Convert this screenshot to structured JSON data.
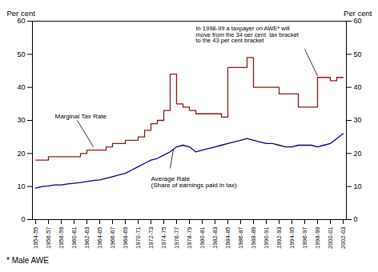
{
  "chart_data": {
    "type": "line",
    "ylabel": "Per cent",
    "y2label": "Per cent",
    "footnote": "* Male AWE",
    "annotations": [
      "In 1998-99 a taxpayer on AWE* will\nmove from the 34 per cent  tax bracket\nto the 43 per cent bracket"
    ],
    "x": [
      1954.5,
      1955.5,
      1956.5,
      1957.5,
      1958.5,
      1959.5,
      1960.5,
      1961.5,
      1962.5,
      1963.5,
      1964.5,
      1965.5,
      1966.5,
      1967.5,
      1968.5,
      1969.5,
      1970.5,
      1971.5,
      1972.5,
      1973.5,
      1974.5,
      1975.5,
      1976.5,
      1977.5,
      1978.5,
      1979.5,
      1980.5,
      1981.5,
      1982.5,
      1983.5,
      1984.5,
      1985.5,
      1986.5,
      1987.5,
      1988.5,
      1989.5,
      1990.5,
      1991.5,
      1992.5,
      1993.5,
      1994.5,
      1995.5,
      1996.5,
      1997.5,
      1998.5,
      1999.5,
      2000.5,
      2001.5,
      2002.5
    ],
    "series": [
      {
        "name": "Marginal Tax Rate",
        "type": "step",
        "color": "#8B1A1A",
        "values": [
          18,
          18,
          19,
          19,
          19,
          19,
          19,
          20,
          21,
          21,
          21,
          22,
          23,
          23,
          24,
          24,
          25,
          27,
          29,
          30,
          33,
          44,
          35,
          34,
          33,
          32,
          32,
          32,
          32,
          31,
          46,
          46,
          46,
          49,
          40,
          40,
          40,
          40,
          38,
          38,
          38,
          34,
          34,
          34,
          43,
          43,
          42,
          43,
          43
        ]
      },
      {
        "name": "Average Rate\n(Share of earnings paid in tax)",
        "type": "line",
        "color": "#00008B",
        "values": [
          9.5,
          10.0,
          10.2,
          10.5,
          10.5,
          10.8,
          11.0,
          11.2,
          11.5,
          11.8,
          12.0,
          12.5,
          13.0,
          13.5,
          14.0,
          15.0,
          16.0,
          17.0,
          18.0,
          18.5,
          19.5,
          20.5,
          22.0,
          22.5,
          22.0,
          20.5,
          21.0,
          21.5,
          22.0,
          22.5,
          23.0,
          23.5,
          24.0,
          24.5,
          24.0,
          23.5,
          23.0,
          23.0,
          22.5,
          22.0,
          22.0,
          22.5,
          22.5,
          22.5,
          22.0,
          22.5,
          23.0,
          24.5,
          26.0
        ]
      }
    ],
    "xlim": [
      1954.0,
      2003.0
    ],
    "xticks": [
      {
        "value": 1954.5,
        "label": "1954-55"
      },
      {
        "value": 1956.5,
        "label": "1956-57"
      },
      {
        "value": 1958.5,
        "label": "1958-59"
      },
      {
        "value": 1960.5,
        "label": "1960-61"
      },
      {
        "value": 1962.5,
        "label": "1962-63"
      },
      {
        "value": 1964.5,
        "label": "1964-65"
      },
      {
        "value": 1966.5,
        "label": "1966-67"
      },
      {
        "value": 1968.5,
        "label": "1968-69"
      },
      {
        "value": 1970.5,
        "label": "1970-71"
      },
      {
        "value": 1972.5,
        "label": "1972-73"
      },
      {
        "value": 1974.5,
        "label": "1974-75"
      },
      {
        "value": 1976.5,
        "label": "1976-77"
      },
      {
        "value": 1978.5,
        "label": "1978-79"
      },
      {
        "value": 1980.5,
        "label": "1980-81"
      },
      {
        "value": 1982.5,
        "label": "1982-83"
      },
      {
        "value": 1984.5,
        "label": "1984-85"
      },
      {
        "value": 1986.5,
        "label": "1986-87"
      },
      {
        "value": 1988.5,
        "label": "1988-89"
      },
      {
        "value": 1990.5,
        "label": "1990-91"
      },
      {
        "value": 1992.5,
        "label": "1992-93"
      },
      {
        "value": 1994.5,
        "label": "1994-95"
      },
      {
        "value": 1996.5,
        "label": "1996-97"
      },
      {
        "value": 1998.5,
        "label": "1998-99"
      },
      {
        "value": 2000.5,
        "label": "2000-01"
      },
      {
        "value": 2002.5,
        "label": "2002-03"
      }
    ],
    "ylim": [
      0,
      60
    ],
    "yticks": [
      0,
      10,
      20,
      30,
      40,
      50,
      60
    ],
    "y2lim": [
      0,
      60
    ],
    "y2ticks": [
      0,
      10,
      20,
      30,
      40,
      50,
      60
    ],
    "grid": false
  }
}
